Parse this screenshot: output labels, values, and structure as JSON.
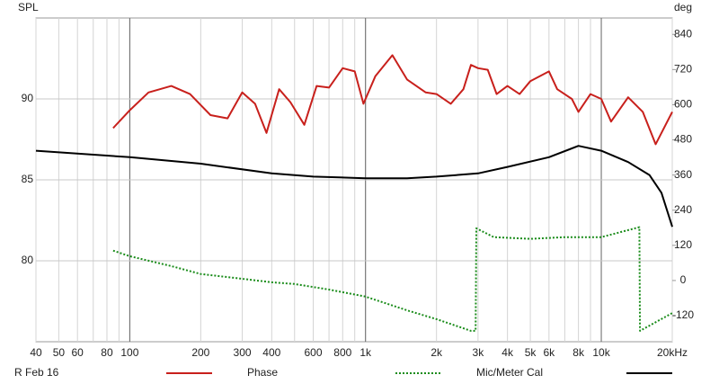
{
  "chart_data": {
    "type": "line",
    "ylabel": "SPL",
    "y2label": "deg",
    "xscale": "log",
    "xlim": [
      40,
      20000
    ],
    "xticks": [
      40,
      50,
      60,
      80,
      100,
      200,
      300,
      400,
      600,
      800,
      {
        "value": 1000,
        "label": "1k"
      },
      {
        "value": 2000,
        "label": "2k"
      },
      {
        "value": 3000,
        "label": "3k"
      },
      {
        "value": 4000,
        "label": "4k"
      },
      {
        "value": 5000,
        "label": "5k"
      },
      {
        "value": 6000,
        "label": "6k"
      },
      {
        "value": 8000,
        "label": "8k"
      },
      {
        "value": 10000,
        "label": "10k"
      },
      {
        "value": 20000,
        "label": "20kHz"
      }
    ],
    "xgrid_minor": [
      70,
      90,
      500,
      700,
      900,
      7000,
      9000
    ],
    "xgrid_major": [
      100,
      1000,
      10000
    ],
    "ylim": [
      75,
      95
    ],
    "yticks": [
      80,
      85,
      90
    ],
    "y2lim": [
      -209,
      896
    ],
    "y2ticks": [
      -120,
      0,
      120,
      240,
      360,
      480,
      600,
      720,
      840
    ],
    "grid": true,
    "series": [
      {
        "name": "R Feb 16",
        "color": "#c8201c",
        "dash": "solid",
        "x": [
          85,
          100,
          120,
          150,
          180,
          220,
          260,
          300,
          340,
          380,
          430,
          480,
          550,
          620,
          700,
          800,
          900,
          980,
          1100,
          1300,
          1500,
          1800,
          2000,
          2300,
          2600,
          2800,
          3000,
          3300,
          3600,
          4000,
          4500,
          5000,
          6000,
          6500,
          7500,
          8000,
          9000,
          10000,
          11000,
          13000,
          15000,
          17000,
          20000
        ],
        "values": [
          88.2,
          89.3,
          90.4,
          90.8,
          90.3,
          89.0,
          88.8,
          90.4,
          89.7,
          87.9,
          90.6,
          89.8,
          88.4,
          90.8,
          90.7,
          91.9,
          91.7,
          89.7,
          91.4,
          92.7,
          91.2,
          90.4,
          90.3,
          89.7,
          90.6,
          92.1,
          91.9,
          91.8,
          90.3,
          90.8,
          90.3,
          91.1,
          91.7,
          90.6,
          90.0,
          89.2,
          90.3,
          90.0,
          88.6,
          90.1,
          89.2,
          87.2,
          89.2
        ]
      },
      {
        "name": "Phase",
        "color": "#1a8c1a",
        "dash": "dotted",
        "axis": "y2",
        "x": [
          85,
          100,
          150,
          200,
          300,
          400,
          500,
          700,
          1000,
          1500,
          2000,
          2800,
          2930,
          2950,
          3500,
          5000,
          7000,
          10000,
          14500,
          14600,
          20000
        ],
        "values": [
          102,
          83,
          49,
          22,
          6,
          -6,
          -12,
          -31,
          -55,
          -102,
          -132,
          -172,
          -172,
          178,
          148,
          142,
          148,
          148,
          182,
          -172,
          -111
        ]
      },
      {
        "name": "Mic/Meter Cal",
        "color": "#000000",
        "dash": "solid",
        "x": [
          40,
          100,
          200,
          400,
          600,
          1000,
          1500,
          2000,
          3000,
          4000,
          6000,
          8000,
          10000,
          13000,
          16000,
          18000,
          20000
        ],
        "values": [
          86.8,
          86.4,
          86.0,
          85.4,
          85.2,
          85.1,
          85.1,
          85.2,
          85.4,
          85.8,
          86.4,
          87.1,
          86.8,
          86.1,
          85.3,
          84.2,
          82.1
        ]
      }
    ]
  }
}
